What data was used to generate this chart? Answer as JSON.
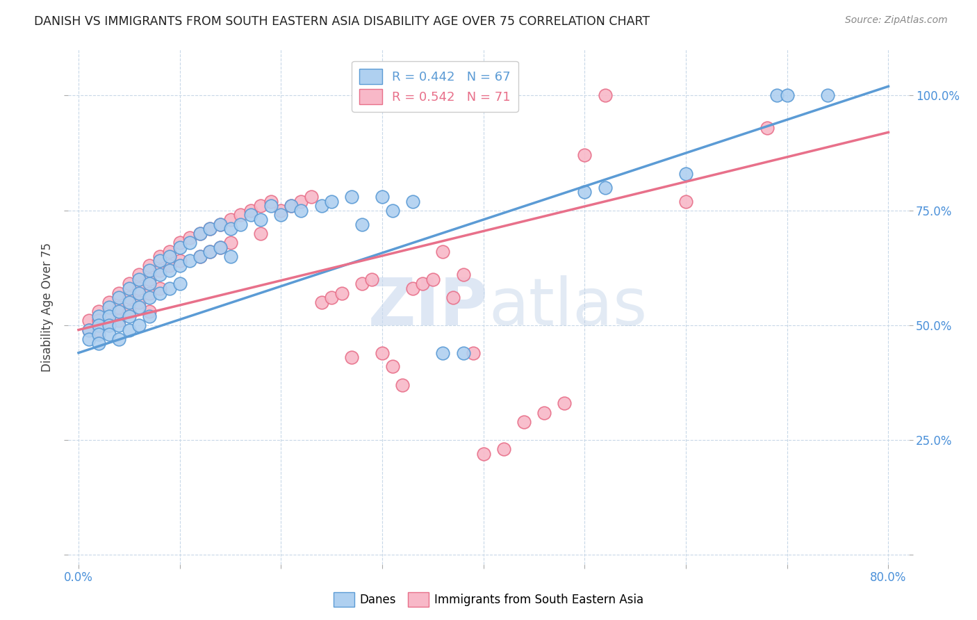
{
  "title": "DANISH VS IMMIGRANTS FROM SOUTH EASTERN ASIA DISABILITY AGE OVER 75 CORRELATION CHART",
  "source": "Source: ZipAtlas.com",
  "ylabel": "Disability Age Over 75",
  "xlim_min": -0.01,
  "xlim_max": 0.82,
  "ylim_min": -0.02,
  "ylim_max": 1.1,
  "xticks": [
    0.0,
    0.1,
    0.2,
    0.3,
    0.4,
    0.5,
    0.6,
    0.7,
    0.8
  ],
  "xticklabels": [
    "0.0%",
    "",
    "",
    "",
    "",
    "",
    "",
    "",
    "80.0%"
  ],
  "ytick_positions": [
    0.0,
    0.25,
    0.5,
    0.75,
    1.0
  ],
  "yticklabels_right": [
    "",
    "25.0%",
    "50.0%",
    "75.0%",
    "100.0%"
  ],
  "danes_R": 0.442,
  "danes_N": 67,
  "immigrants_R": 0.542,
  "immigrants_N": 71,
  "danes_color": "#afd0f0",
  "immigrants_color": "#f8b8c8",
  "danes_edge_color": "#5b9bd5",
  "immigrants_edge_color": "#e8708a",
  "danes_line_color": "#5b9bd5",
  "immigrants_line_color": "#e8708a",
  "legend_danes_label": "Danes",
  "legend_immigrants_label": "Immigrants from South Eastern Asia",
  "danes_line_x0": 0.0,
  "danes_line_y0": 0.44,
  "danes_line_x1": 0.8,
  "danes_line_y1": 1.02,
  "immigrants_line_x0": 0.0,
  "immigrants_line_y0": 0.49,
  "immigrants_line_x1": 0.8,
  "immigrants_line_y1": 0.92,
  "danes_x": [
    0.01,
    0.01,
    0.02,
    0.02,
    0.02,
    0.02,
    0.03,
    0.03,
    0.03,
    0.03,
    0.04,
    0.04,
    0.04,
    0.04,
    0.05,
    0.05,
    0.05,
    0.05,
    0.06,
    0.06,
    0.06,
    0.06,
    0.07,
    0.07,
    0.07,
    0.07,
    0.08,
    0.08,
    0.08,
    0.09,
    0.09,
    0.09,
    0.1,
    0.1,
    0.1,
    0.11,
    0.11,
    0.12,
    0.12,
    0.13,
    0.13,
    0.14,
    0.14,
    0.15,
    0.15,
    0.16,
    0.17,
    0.18,
    0.19,
    0.2,
    0.21,
    0.22,
    0.24,
    0.25,
    0.27,
    0.28,
    0.3,
    0.31,
    0.33,
    0.36,
    0.38,
    0.5,
    0.52,
    0.6,
    0.69,
    0.7,
    0.74
  ],
  "danes_y": [
    0.49,
    0.47,
    0.52,
    0.5,
    0.48,
    0.46,
    0.54,
    0.52,
    0.5,
    0.48,
    0.56,
    0.53,
    0.5,
    0.47,
    0.58,
    0.55,
    0.52,
    0.49,
    0.6,
    0.57,
    0.54,
    0.5,
    0.62,
    0.59,
    0.56,
    0.52,
    0.64,
    0.61,
    0.57,
    0.65,
    0.62,
    0.58,
    0.67,
    0.63,
    0.59,
    0.68,
    0.64,
    0.7,
    0.65,
    0.71,
    0.66,
    0.72,
    0.67,
    0.71,
    0.65,
    0.72,
    0.74,
    0.73,
    0.76,
    0.74,
    0.76,
    0.75,
    0.76,
    0.77,
    0.78,
    0.72,
    0.78,
    0.75,
    0.77,
    0.44,
    0.44,
    0.79,
    0.8,
    0.83,
    1.0,
    1.0,
    1.0
  ],
  "immigrants_x": [
    0.01,
    0.01,
    0.02,
    0.02,
    0.02,
    0.03,
    0.03,
    0.03,
    0.04,
    0.04,
    0.04,
    0.05,
    0.05,
    0.05,
    0.06,
    0.06,
    0.06,
    0.07,
    0.07,
    0.07,
    0.07,
    0.08,
    0.08,
    0.08,
    0.09,
    0.09,
    0.1,
    0.1,
    0.11,
    0.12,
    0.12,
    0.13,
    0.13,
    0.14,
    0.14,
    0.15,
    0.15,
    0.16,
    0.17,
    0.18,
    0.18,
    0.19,
    0.2,
    0.21,
    0.22,
    0.23,
    0.24,
    0.25,
    0.26,
    0.27,
    0.28,
    0.29,
    0.3,
    0.31,
    0.32,
    0.33,
    0.34,
    0.35,
    0.36,
    0.37,
    0.38,
    0.39,
    0.4,
    0.42,
    0.44,
    0.46,
    0.48,
    0.5,
    0.52,
    0.6,
    0.68
  ],
  "immigrants_y": [
    0.51,
    0.49,
    0.53,
    0.51,
    0.49,
    0.55,
    0.52,
    0.5,
    0.57,
    0.54,
    0.51,
    0.59,
    0.56,
    0.53,
    0.61,
    0.58,
    0.55,
    0.63,
    0.6,
    0.57,
    0.53,
    0.65,
    0.62,
    0.58,
    0.66,
    0.63,
    0.68,
    0.64,
    0.69,
    0.7,
    0.65,
    0.71,
    0.66,
    0.72,
    0.67,
    0.73,
    0.68,
    0.74,
    0.75,
    0.76,
    0.7,
    0.77,
    0.75,
    0.76,
    0.77,
    0.78,
    0.55,
    0.56,
    0.57,
    0.43,
    0.59,
    0.6,
    0.44,
    0.41,
    0.37,
    0.58,
    0.59,
    0.6,
    0.66,
    0.56,
    0.61,
    0.44,
    0.22,
    0.23,
    0.29,
    0.31,
    0.33,
    0.87,
    1.0,
    0.77,
    0.93
  ]
}
